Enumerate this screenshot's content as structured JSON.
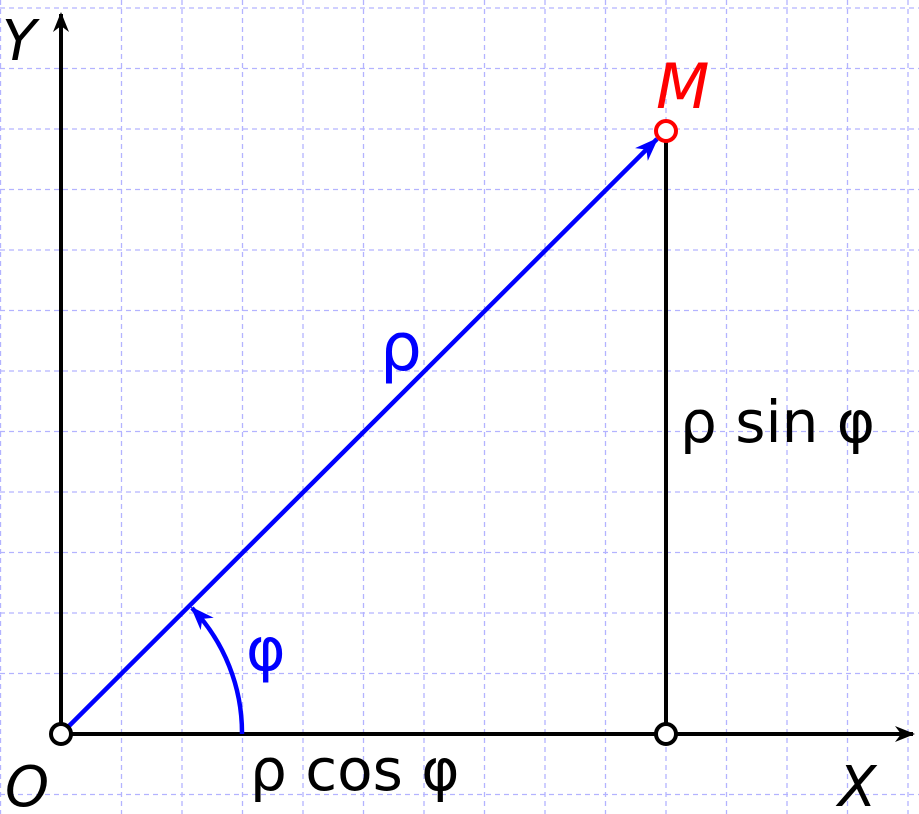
{
  "labels": {
    "y_axis": "Y",
    "x_axis": "X",
    "origin": "O",
    "point": "M",
    "radius": "ρ",
    "angle": "φ",
    "horizontal_leg": "ρ cos φ",
    "vertical_leg": "ρ sin φ"
  },
  "colors": {
    "background": "#ffffff",
    "grid": "#b3b3ff",
    "axes": "#000000",
    "vector": "#0000ff",
    "point": "#ff0000"
  },
  "grid": true
}
